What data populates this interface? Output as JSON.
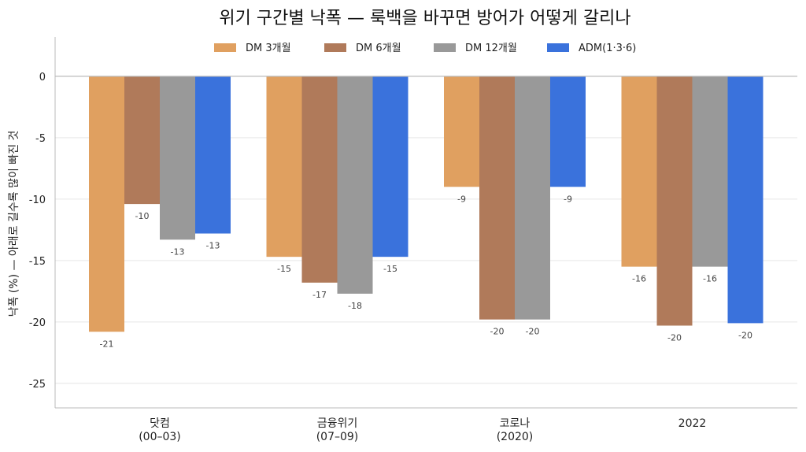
{
  "chart_data": {
    "type": "bar",
    "title": "위기 구간별 낙폭 — 룩백을 바꾸면 방어가 어떻게 갈리나",
    "ylabel": "낙폭 (%)  — 아래로 길수록 많이 빠진 것",
    "xlabel": "",
    "categories": [
      [
        "닷컴",
        "(00–03)"
      ],
      [
        "금융위기",
        "(07–09)"
      ],
      [
        "코로나",
        "(2020)"
      ],
      [
        "2022"
      ]
    ],
    "ylim": [
      -27,
      3.2
    ],
    "yticks": [
      0,
      -5,
      -10,
      -15,
      -20,
      -25
    ],
    "grid": true,
    "legend_position": "top-center",
    "series": [
      {
        "name": "DM 3개월",
        "color": "#E0A060",
        "values": [
          -20.8,
          -14.7,
          -9.0,
          -15.5
        ],
        "labels": [
          "-21",
          "-15",
          "-9",
          "-16"
        ]
      },
      {
        "name": "DM 6개월",
        "color": "#B07A5A",
        "values": [
          -10.4,
          -16.8,
          -19.8,
          -20.3
        ],
        "labels": [
          "-10",
          "-17",
          "-20",
          "-20"
        ]
      },
      {
        "name": "DM 12개월",
        "color": "#999999",
        "values": [
          -13.3,
          -17.7,
          -19.8,
          -15.5
        ],
        "labels": [
          "-13",
          "-18",
          "-20",
          "-16"
        ]
      },
      {
        "name": "ADM(1·3·6)",
        "color": "#3A72DC",
        "values": [
          -12.8,
          -14.7,
          -9.0,
          -20.1
        ],
        "labels": [
          "-13",
          "-15",
          "-9",
          "-20"
        ]
      }
    ]
  }
}
